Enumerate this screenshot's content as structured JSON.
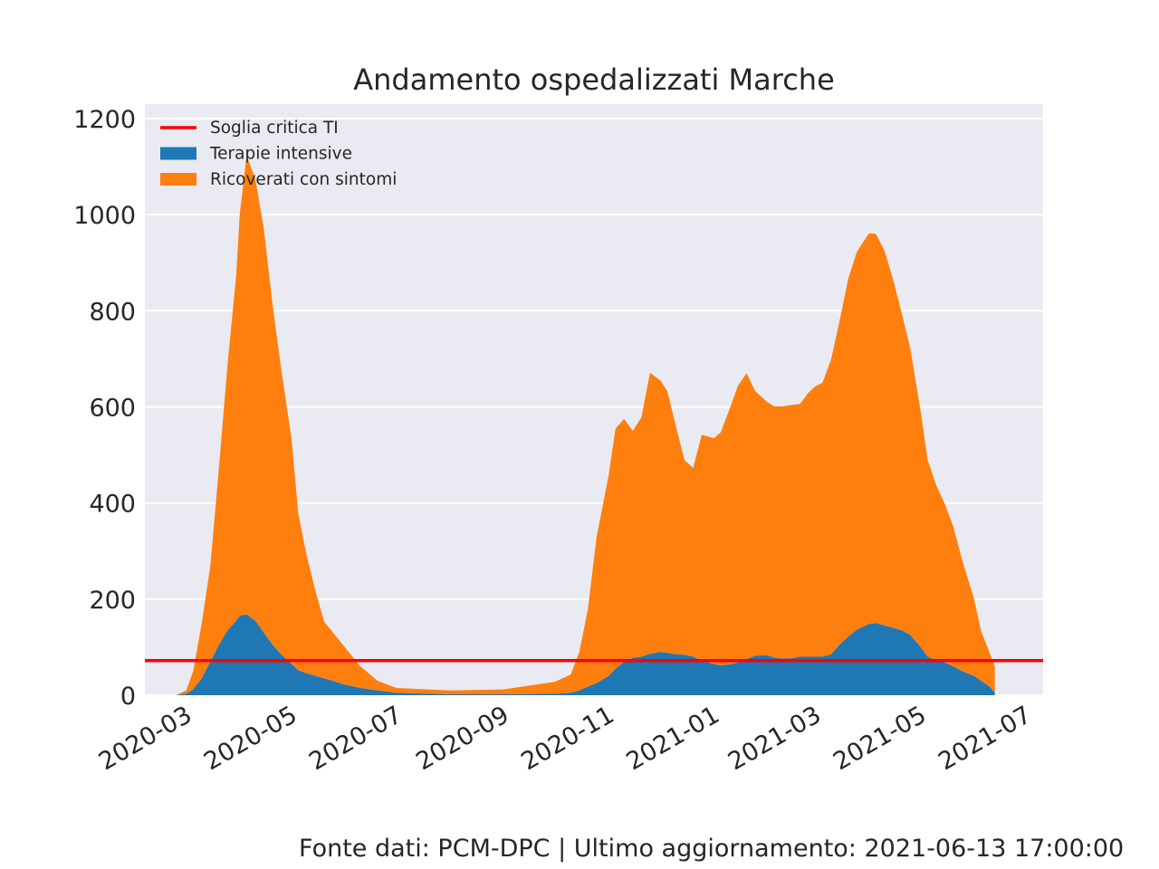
{
  "footer": {
    "source_text": "Fonte dati: PCM-DPC | Ultimo aggiornamento: 2021-06-13 17:00:00"
  },
  "colors": {
    "background": "#ffffff",
    "plot_area": "#eaeaf2",
    "grid": "#ffffff",
    "ricoverati": "#ff7f0e",
    "terapie": "#1f77b4",
    "threshold": "#ff0000",
    "text": "#262626"
  },
  "chart_data": {
    "type": "area",
    "stacked": true,
    "title": "Andamento ospedalizzati Marche",
    "xlabel": "",
    "ylabel": "",
    "x_axis_type": "date",
    "xlim": [
      "2020-02-06",
      "2021-07-11"
    ],
    "ylim": [
      0,
      1230
    ],
    "y_ticks": [
      0,
      200,
      400,
      600,
      800,
      1000,
      1200
    ],
    "x_ticks": [
      "2020-03",
      "2020-05",
      "2020-07",
      "2020-09",
      "2020-11",
      "2021-01",
      "2021-03",
      "2021-05",
      "2021-07"
    ],
    "grid": true,
    "legend_position": "top-left",
    "legend": [
      "Soglia critica TI",
      "Terapie intensive",
      "Ricoverati con sintomi"
    ],
    "threshold": {
      "name": "Soglia critica TI",
      "value": 72
    },
    "series": [
      {
        "name": "Terapie intensive",
        "x": [
          "2020-02-24",
          "2020-03-01",
          "2020-03-05",
          "2020-03-10",
          "2020-03-15",
          "2020-03-20",
          "2020-03-25",
          "2020-03-30",
          "2020-04-01",
          "2020-04-05",
          "2020-04-10",
          "2020-04-15",
          "2020-04-20",
          "2020-04-25",
          "2020-05-01",
          "2020-05-05",
          "2020-05-10",
          "2020-05-15",
          "2020-05-20",
          "2020-06-01",
          "2020-06-10",
          "2020-06-20",
          "2020-07-01",
          "2020-08-01",
          "2020-09-01",
          "2020-10-01",
          "2020-10-10",
          "2020-10-15",
          "2020-10-20",
          "2020-10-25",
          "2020-11-01",
          "2020-11-05",
          "2020-11-10",
          "2020-11-15",
          "2020-11-20",
          "2020-11-25",
          "2020-12-01",
          "2020-12-05",
          "2020-12-10",
          "2020-12-15",
          "2020-12-20",
          "2020-12-25",
          "2021-01-01",
          "2021-01-05",
          "2021-01-10",
          "2021-01-15",
          "2021-01-20",
          "2021-01-25",
          "2021-02-01",
          "2021-02-05",
          "2021-02-10",
          "2021-02-15",
          "2021-02-20",
          "2021-02-25",
          "2021-03-01",
          "2021-03-05",
          "2021-03-10",
          "2021-03-15",
          "2021-03-20",
          "2021-03-25",
          "2021-04-01",
          "2021-04-05",
          "2021-04-10",
          "2021-04-15",
          "2021-04-20",
          "2021-04-25",
          "2021-05-01",
          "2021-05-05",
          "2021-05-10",
          "2021-05-15",
          "2021-05-20",
          "2021-05-25",
          "2021-06-01",
          "2021-06-05",
          "2021-06-10",
          "2021-06-13"
        ],
        "values": [
          0,
          3,
          12,
          35,
          70,
          105,
          135,
          155,
          165,
          168,
          155,
          130,
          105,
          85,
          65,
          52,
          45,
          40,
          35,
          22,
          15,
          10,
          5,
          2,
          2,
          3,
          5,
          10,
          18,
          25,
          40,
          55,
          70,
          78,
          80,
          86,
          90,
          88,
          85,
          84,
          80,
          72,
          65,
          62,
          64,
          68,
          75,
          82,
          83,
          78,
          76,
          77,
          80,
          80,
          80,
          80,
          85,
          105,
          122,
          136,
          148,
          150,
          145,
          140,
          135,
          125,
          100,
          80,
          72,
          68,
          60,
          50,
          40,
          30,
          18,
          5
        ]
      },
      {
        "name": "Ricoverati con sintomi",
        "x": [
          "2020-02-24",
          "2020-03-01",
          "2020-03-05",
          "2020-03-10",
          "2020-03-15",
          "2020-03-20",
          "2020-03-25",
          "2020-03-30",
          "2020-04-01",
          "2020-04-05",
          "2020-04-10",
          "2020-04-15",
          "2020-04-20",
          "2020-04-25",
          "2020-05-01",
          "2020-05-05",
          "2020-05-10",
          "2020-05-15",
          "2020-05-20",
          "2020-06-01",
          "2020-06-10",
          "2020-06-20",
          "2020-07-01",
          "2020-08-01",
          "2020-09-01",
          "2020-10-01",
          "2020-10-10",
          "2020-10-15",
          "2020-10-20",
          "2020-10-25",
          "2020-11-01",
          "2020-11-05",
          "2020-11-10",
          "2020-11-15",
          "2020-11-20",
          "2020-11-25",
          "2020-12-01",
          "2020-12-05",
          "2020-12-10",
          "2020-12-15",
          "2020-12-20",
          "2020-12-25",
          "2021-01-01",
          "2021-01-05",
          "2021-01-10",
          "2021-01-15",
          "2021-01-20",
          "2021-01-25",
          "2021-02-01",
          "2021-02-05",
          "2021-02-10",
          "2021-02-15",
          "2021-02-20",
          "2021-02-25",
          "2021-03-01",
          "2021-03-05",
          "2021-03-10",
          "2021-03-15",
          "2021-03-20",
          "2021-03-25",
          "2021-04-01",
          "2021-04-05",
          "2021-04-10",
          "2021-04-15",
          "2021-04-20",
          "2021-04-25",
          "2021-05-01",
          "2021-05-05",
          "2021-05-10",
          "2021-05-15",
          "2021-05-20",
          "2021-05-25",
          "2021-06-01",
          "2021-06-05",
          "2021-06-10",
          "2021-06-13"
        ],
        "values": [
          0,
          7,
          38,
          115,
          200,
          370,
          555,
          720,
          835,
          955,
          920,
          840,
          710,
          595,
          470,
          325,
          243,
          176,
          118,
          78,
          45,
          20,
          10,
          8,
          10,
          25,
          38,
          80,
          162,
          304,
          418,
          500,
          505,
          472,
          498,
          585,
          565,
          545,
          475,
          405,
          393,
          470,
          470,
          485,
          530,
          576,
          595,
          551,
          527,
          523,
          525,
          527,
          526,
          550,
          563,
          570,
          613,
          675,
          745,
          787,
          813,
          810,
          780,
          725,
          660,
          596,
          490,
          410,
          365,
          330,
          290,
          232,
          160,
          104,
          70,
          55
        ]
      }
    ]
  }
}
